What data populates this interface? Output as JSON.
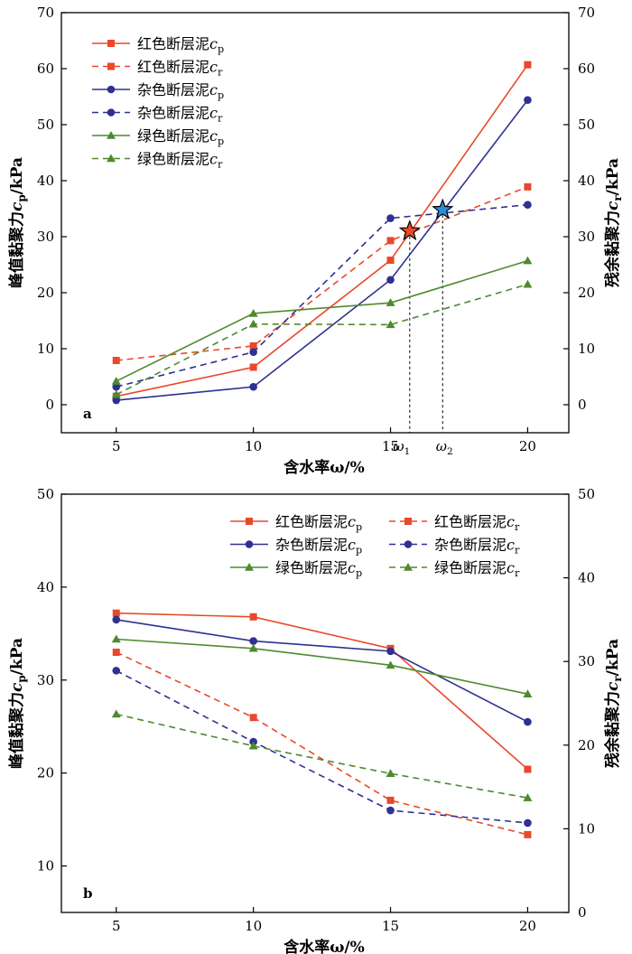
{
  "chart_data": [
    {
      "type": "line",
      "panel_label": "a",
      "xlabel": "含水率ω/%",
      "ylabel_left": "峰值黏聚力c_p/kPa",
      "ylabel_right": "残余黏聚力c_r/kPa",
      "xlim": [
        3,
        21.5
      ],
      "ylim": [
        -5,
        70
      ],
      "xticks": [
        5,
        10,
        15,
        20
      ],
      "yticks": [
        0,
        10,
        20,
        30,
        40,
        50,
        60,
        70
      ],
      "grid": false,
      "legend": "top-left",
      "x": [
        5,
        10,
        15,
        20
      ],
      "series": [
        {
          "name": "红色断层泥c_p",
          "color": "#e8492a",
          "dash": false,
          "marker": "square",
          "values": [
            1.5,
            6.7,
            25.8,
            60.7
          ]
        },
        {
          "name": "红色断层泥c_r",
          "color": "#e8492a",
          "dash": true,
          "marker": "square",
          "values": [
            7.9,
            10.5,
            29.3,
            38.9
          ]
        },
        {
          "name": "杂色断层泥c_p",
          "color": "#2e3192",
          "dash": false,
          "marker": "circle",
          "values": [
            0.8,
            3.2,
            22.3,
            54.4
          ]
        },
        {
          "name": "杂色断层泥c_r",
          "color": "#2e3192",
          "dash": true,
          "marker": "circle",
          "values": [
            3.2,
            9.4,
            33.3,
            35.7
          ]
        },
        {
          "name": "绿色断层泥c_p",
          "color": "#4e8a2e",
          "dash": false,
          "marker": "triangle",
          "values": [
            4.2,
            16.3,
            18.2,
            25.7
          ]
        },
        {
          "name": "绿色断层泥c_r",
          "color": "#4e8a2e",
          "dash": true,
          "marker": "triangle",
          "values": [
            1.8,
            14.4,
            14.3,
            21.5
          ]
        }
      ],
      "annotations": [
        {
          "label": "ω1",
          "x": 15.7,
          "y": 31.0,
          "star_color": "#e8492a"
        },
        {
          "label": "ω2",
          "x": 16.9,
          "y": 34.8,
          "star_color": "#2a8fd6"
        }
      ]
    },
    {
      "type": "line",
      "panel_label": "b",
      "xlabel": "含水率ω/%",
      "ylabel_left": "峰值黏聚力c_p/kPa",
      "ylabel_right": "残余黏聚力c_r/kPa",
      "xlim": [
        3,
        21.5
      ],
      "ylim_left": [
        5,
        50
      ],
      "ylim_right": [
        0,
        50
      ],
      "xticks": [
        5,
        10,
        15,
        20
      ],
      "yticks_left": [
        10,
        20,
        30,
        40,
        50
      ],
      "yticks_right": [
        0,
        10,
        20,
        30,
        40,
        50
      ],
      "grid": false,
      "legend": "top-right",
      "x": [
        5,
        10,
        15,
        20
      ],
      "series": [
        {
          "name": "红色断层泥c_p",
          "axis": "left",
          "color": "#e8492a",
          "dash": false,
          "marker": "square",
          "values": [
            37.2,
            36.8,
            33.4,
            20.4
          ]
        },
        {
          "name": "红色断层泥c_r",
          "axis": "right",
          "color": "#e8492a",
          "dash": true,
          "marker": "square",
          "values": [
            31.1,
            23.3,
            13.4,
            9.3
          ]
        },
        {
          "name": "杂色断层泥c_p",
          "axis": "left",
          "color": "#2e3192",
          "dash": false,
          "marker": "circle",
          "values": [
            36.5,
            34.2,
            33.1,
            25.5
          ]
        },
        {
          "name": "杂色断层泥c_r",
          "axis": "right",
          "color": "#2e3192",
          "dash": true,
          "marker": "circle",
          "values": [
            28.9,
            20.4,
            12.2,
            10.7
          ]
        },
        {
          "name": "绿色断层泥c_p",
          "axis": "left",
          "color": "#4e8a2e",
          "dash": false,
          "marker": "triangle",
          "values": [
            34.4,
            33.4,
            31.6,
            28.5
          ]
        },
        {
          "name": "绿色断层泥c_r",
          "axis": "right",
          "color": "#4e8a2e",
          "dash": true,
          "marker": "triangle",
          "values": [
            23.7,
            19.9,
            16.6,
            13.7
          ]
        }
      ]
    }
  ]
}
